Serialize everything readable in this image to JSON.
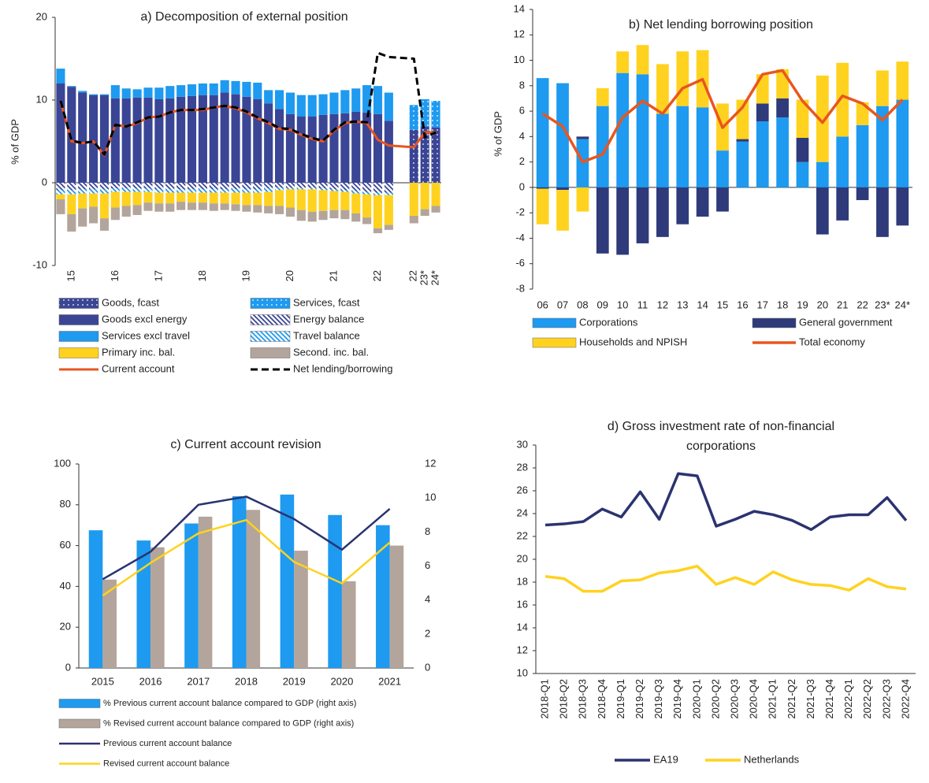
{
  "chart_data": [
    {
      "type": "bar",
      "title": "a) Decomposition of external position",
      "ylabel": "% of GDP",
      "stacked": true,
      "categories": [
        null,
        "15",
        null,
        null,
        null,
        "16",
        null,
        null,
        null,
        "17",
        null,
        null,
        null,
        "18",
        null,
        null,
        null,
        "19",
        null,
        null,
        null,
        "20",
        null,
        null,
        null,
        "21",
        null,
        null,
        null,
        "22",
        null,
        "22",
        "23*",
        "24*"
      ],
      "ylim": [
        -10,
        20
      ],
      "yticks": [
        -10,
        0,
        10,
        20
      ],
      "series": [
        {
          "name": "Goods, fcast",
          "color": "#3b4595",
          "pattern": "dots",
          "values": [
            null,
            null,
            null,
            null,
            null,
            null,
            null,
            null,
            null,
            null,
            null,
            null,
            null,
            null,
            null,
            null,
            null,
            null,
            null,
            null,
            null,
            null,
            null,
            null,
            null,
            null,
            null,
            null,
            null,
            null,
            null,
            6.4,
            6.8,
            6.7
          ]
        },
        {
          "name": "Services, fcast",
          "color": "#1e9af0",
          "pattern": "dots",
          "values": [
            null,
            null,
            null,
            null,
            null,
            null,
            null,
            null,
            null,
            null,
            null,
            null,
            null,
            null,
            null,
            null,
            null,
            null,
            null,
            null,
            null,
            null,
            null,
            null,
            null,
            null,
            null,
            null,
            null,
            null,
            null,
            3.0,
            3.3,
            3.2
          ]
        },
        {
          "name": "Goods excl energy",
          "color": "#3b4595",
          "values": [
            12.0,
            11.6,
            10.9,
            10.6,
            10.6,
            10.2,
            10.2,
            10.3,
            10.3,
            10.1,
            10.2,
            10.4,
            10.5,
            10.6,
            10.6,
            10.9,
            10.7,
            10.4,
            10.1,
            9.6,
            8.9,
            8.3,
            8.0,
            8.0,
            8.2,
            8.3,
            8.4,
            8.6,
            8.5,
            8.3,
            7.5,
            null,
            null,
            null
          ]
        },
        {
          "name": "Energy balance",
          "color": "#3b4595",
          "pattern": "hatch",
          "values": [
            -0.9,
            -0.9,
            -0.8,
            -0.8,
            -0.8,
            -0.7,
            -0.7,
            -0.7,
            -0.7,
            -0.8,
            -0.8,
            -0.8,
            -0.8,
            -0.8,
            -0.8,
            -0.8,
            -0.8,
            -0.8,
            -0.8,
            -0.7,
            -0.6,
            -0.6,
            -0.6,
            -0.6,
            -0.7,
            -0.8,
            -0.9,
            -1.0,
            -1.1,
            -1.2,
            -1.2,
            null,
            null,
            null
          ]
        },
        {
          "name": "Services excl travel",
          "color": "#1e9af0",
          "values": [
            1.8,
            0.1,
            0.2,
            0.1,
            0.1,
            1.6,
            1.2,
            1.0,
            1.2,
            1.4,
            1.5,
            1.4,
            1.4,
            1.4,
            1.4,
            1.5,
            1.6,
            1.8,
            2.0,
            1.6,
            2.3,
            2.6,
            2.6,
            2.6,
            2.5,
            2.6,
            2.8,
            2.8,
            3.3,
            3.4,
            3.4,
            null,
            null,
            null
          ]
        },
        {
          "name": "Travel balance",
          "color": "#1e9af0",
          "pattern": "hatch",
          "values": [
            -0.5,
            -0.5,
            -0.5,
            -0.5,
            -0.5,
            -0.4,
            -0.4,
            -0.4,
            -0.4,
            -0.4,
            -0.4,
            -0.4,
            -0.4,
            -0.4,
            -0.4,
            -0.4,
            -0.4,
            -0.4,
            -0.4,
            -0.4,
            -0.3,
            -0.2,
            -0.2,
            -0.2,
            -0.2,
            -0.2,
            -0.2,
            -0.3,
            -0.3,
            -0.3,
            -0.3,
            null,
            null,
            null
          ]
        },
        {
          "name": "Primary inc. bal.",
          "color": "#ffd21f",
          "values": [
            -0.6,
            -2.4,
            -1.8,
            -1.6,
            -3.0,
            -1.9,
            -1.7,
            -1.6,
            -1.3,
            -1.3,
            -1.3,
            -1.1,
            -1.2,
            -1.2,
            -1.3,
            -1.3,
            -1.4,
            -1.5,
            -1.5,
            -1.7,
            -1.9,
            -2.2,
            -2.5,
            -2.7,
            -2.5,
            -2.3,
            -2.2,
            -2.4,
            -2.8,
            -4.0,
            -3.6,
            -4.0,
            -3.2,
            -2.8
          ]
        },
        {
          "name": "Second. inc. bal.",
          "color": "#b3a59b",
          "values": [
            -1.8,
            -2.1,
            -2.2,
            -2.0,
            -1.5,
            -1.5,
            -1.3,
            -1.2,
            -1.0,
            -1.0,
            -1.0,
            -1.0,
            -0.9,
            -0.9,
            -0.9,
            -0.8,
            -0.8,
            -0.8,
            -0.9,
            -0.9,
            -1.0,
            -1.1,
            -1.3,
            -1.2,
            -1.1,
            -1.0,
            -1.1,
            -1.0,
            -0.8,
            -0.6,
            -0.6,
            -0.9,
            -0.8,
            -0.8
          ]
        },
        {
          "name": "Current account",
          "color": "#e8561f",
          "kind": "line",
          "values": [
            9.8,
            5.0,
            4.8,
            5.0,
            3.3,
            7.0,
            6.8,
            7.2,
            7.9,
            8.0,
            8.5,
            8.8,
            8.8,
            8.8,
            9.1,
            9.3,
            9.0,
            8.5,
            7.8,
            7.2,
            6.5,
            6.4,
            5.8,
            5.3,
            5.0,
            6.3,
            7.2,
            7.4,
            7.2,
            5.2,
            4.5,
            4.3,
            6.1,
            6.1
          ]
        },
        {
          "name": "Net lending/borrowing",
          "color": "#000000",
          "kind": "line",
          "dashed": true,
          "values": [
            9.9,
            5.1,
            4.8,
            5.0,
            3.4,
            7.0,
            6.8,
            7.3,
            7.9,
            8.0,
            8.5,
            8.8,
            8.8,
            8.9,
            9.1,
            9.3,
            9.1,
            8.6,
            7.9,
            7.3,
            6.6,
            6.5,
            5.9,
            5.4,
            5.1,
            6.4,
            7.3,
            7.4,
            7.3,
            15.7,
            15.2,
            15.0,
            5.5,
            6.1
          ]
        }
      ]
    },
    {
      "type": "bar",
      "title": "b) Net lending borrowing position",
      "ylabel": "% of GDP",
      "stacked": true,
      "categories": [
        "06",
        "07",
        "08",
        "09",
        "10",
        "11",
        "12",
        "13",
        "14",
        "15",
        "16",
        "17",
        "18",
        "19",
        "20",
        "21",
        "22",
        "23*",
        "24*"
      ],
      "ylim": [
        -8,
        14
      ],
      "yticks": [
        -8,
        -6,
        -4,
        -2,
        0,
        2,
        4,
        6,
        8,
        10,
        12,
        14
      ],
      "series": [
        {
          "name": "Corporations",
          "color": "#1e9af0",
          "values": [
            8.6,
            8.2,
            3.8,
            6.4,
            9.0,
            8.9,
            5.8,
            6.4,
            6.3,
            2.9,
            3.6,
            5.2,
            5.5,
            2.0,
            2.0,
            4.0,
            4.9,
            6.4,
            6.9
          ]
        },
        {
          "name": "General government",
          "color": "#2f3a7a",
          "values": [
            -0.1,
            -0.2,
            0.2,
            -5.2,
            -5.3,
            -4.4,
            -3.9,
            -2.9,
            -2.3,
            -1.9,
            0.2,
            1.4,
            1.5,
            1.9,
            -3.7,
            -2.6,
            -1.0,
            -3.9,
            -3.0
          ]
        },
        {
          "name": "Households and NPISH",
          "color": "#ffd21f",
          "values": [
            -2.8,
            -3.2,
            -1.9,
            1.4,
            1.7,
            2.3,
            3.9,
            4.3,
            4.5,
            3.7,
            3.1,
            2.3,
            2.3,
            3.0,
            6.8,
            5.8,
            1.8,
            2.8,
            3.0
          ]
        },
        {
          "name": "Total economy",
          "color": "#e8561f",
          "kind": "line",
          "values": [
            5.8,
            4.8,
            2.0,
            2.6,
            5.5,
            6.8,
            5.8,
            7.8,
            8.5,
            4.7,
            6.3,
            8.9,
            9.2,
            6.8,
            5.1,
            7.2,
            6.6,
            5.3,
            6.9
          ]
        }
      ]
    },
    {
      "type": "bar",
      "title": "c) Current account revision",
      "stacked": false,
      "categories": [
        "2015",
        "2016",
        "2017",
        "2018",
        "2019",
        "2020",
        "2021"
      ],
      "ylim": [
        0,
        100
      ],
      "yticks": [
        0,
        20,
        40,
        60,
        80,
        100
      ],
      "y2lim": [
        0,
        12
      ],
      "y2ticks": [
        0,
        2,
        4,
        6,
        8,
        10,
        12
      ],
      "series": [
        {
          "name": "% Previous current account balance compared to GDP (right axis)",
          "color": "#1e9af0",
          "axis": "y2",
          "values": [
            8.1,
            7.5,
            8.5,
            10.1,
            10.2,
            9.0,
            8.4
          ]
        },
        {
          "name": "% Revised current account balance compared to GDP (right axis)",
          "color": "#b3a59b",
          "axis": "y2",
          "values": [
            5.2,
            7.1,
            8.9,
            9.3,
            6.9,
            5.1,
            7.2
          ]
        },
        {
          "name": "Previous current account balance",
          "color": "#2b3370",
          "kind": "line",
          "values": [
            43.5,
            57,
            80,
            84,
            73,
            58,
            78
          ]
        },
        {
          "name": "Revised current account balance",
          "color": "#ffd21f",
          "kind": "line",
          "values": [
            35.5,
            51.5,
            66,
            72.5,
            52,
            41.5,
            61.5
          ]
        }
      ]
    },
    {
      "type": "line",
      "title": [
        "d) Gross investment rate of non-financial",
        "corporations"
      ],
      "categories": [
        "2018-Q1",
        "2018-Q2",
        "2018-Q3",
        "2018-Q4",
        "2019-Q1",
        "2019-Q2",
        "2019-Q3",
        "2019-Q4",
        "2020-Q1",
        "2020-Q2",
        "2020-Q3",
        "2020-Q4",
        "2021-Q1",
        "2021-Q2",
        "2021-Q3",
        "2021-Q4",
        "2022-Q1",
        "2022-Q2",
        "2022-Q3",
        "2022-Q4"
      ],
      "ylim": [
        10,
        30
      ],
      "yticks": [
        10,
        12,
        14,
        16,
        18,
        20,
        22,
        24,
        26,
        28,
        30
      ],
      "series": [
        {
          "name": "EA19",
          "color": "#2b3370",
          "values": [
            23.0,
            23.1,
            23.3,
            24.4,
            23.7,
            25.9,
            23.5,
            27.5,
            27.3,
            22.9,
            23.5,
            24.2,
            23.9,
            23.4,
            22.6,
            23.7,
            23.9,
            23.9,
            25.4,
            23.4
          ]
        },
        {
          "name": "Netherlands",
          "color": "#ffd21f",
          "values": [
            18.5,
            18.3,
            17.2,
            17.2,
            18.1,
            18.2,
            18.8,
            19.0,
            19.4,
            17.8,
            18.4,
            17.8,
            18.9,
            18.2,
            17.8,
            17.7,
            17.3,
            18.3,
            17.6,
            17.4
          ]
        }
      ]
    }
  ]
}
